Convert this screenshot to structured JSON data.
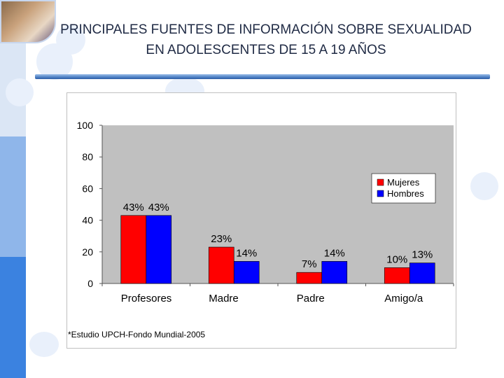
{
  "slide": {
    "title_line1": "PRINCIPALES FUENTES DE INFORMACIÓN SOBRE SEXUALIDAD",
    "title_line2": "EN ADOLESCENTES DE 15 A 19 AÑOS",
    "footnote": "*Estudio UPCH-Fondo Mundial-2005"
  },
  "colors": {
    "mujeres": "#ff0000",
    "hombres": "#0000ff",
    "plot_bg": "#c0c0c0"
  },
  "chart_data": {
    "type": "bar",
    "title": "",
    "xlabel": "",
    "ylabel": "",
    "categories": [
      "Profesores",
      "Madre",
      "Padre",
      "Amigo/a"
    ],
    "series": [
      {
        "name": "Mujeres",
        "values": [
          43,
          23,
          7,
          10
        ],
        "labels": [
          "43%",
          "23%",
          "7%",
          "10%"
        ]
      },
      {
        "name": "Hombres",
        "values": [
          43,
          14,
          14,
          13
        ],
        "labels": [
          "43%",
          "14%",
          "14%",
          "13%"
        ]
      }
    ],
    "ylim": [
      0,
      100
    ],
    "yticks": [
      0,
      20,
      40,
      60,
      80,
      100
    ],
    "grid": false,
    "legend": "right"
  }
}
